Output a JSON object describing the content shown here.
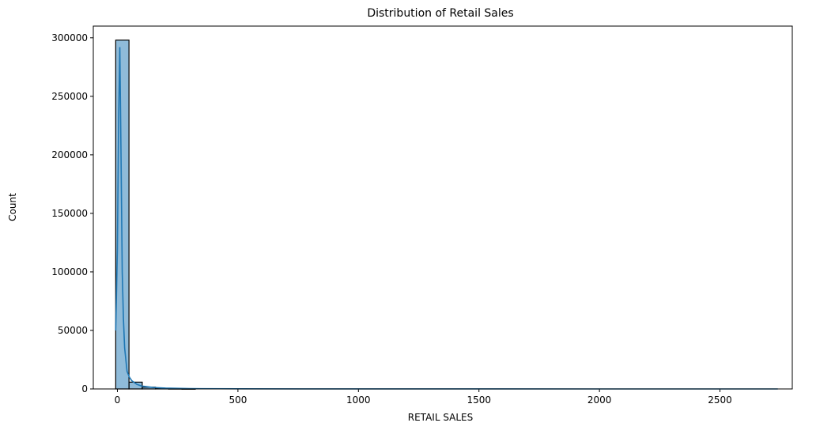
{
  "chart_data": {
    "type": "histogram",
    "title": "Distribution of Retail Sales",
    "xlabel": "RETAIL SALES",
    "ylabel": "Count",
    "xlim": [
      -100,
      2800
    ],
    "ylim": [
      0,
      310000
    ],
    "x_ticks": [
      0,
      500,
      1000,
      1500,
      2000,
      2500
    ],
    "y_ticks": [
      0,
      50000,
      100000,
      150000,
      200000,
      250000,
      300000
    ],
    "grid": false,
    "bar_color": "#1f77b4",
    "line_color": "#1f77b4",
    "bins": [
      {
        "start": -7,
        "end": 48,
        "count": 298000
      },
      {
        "start": 48,
        "end": 103,
        "count": 5800
      },
      {
        "start": 103,
        "end": 158,
        "count": 1500
      },
      {
        "start": 158,
        "end": 213,
        "count": 500
      },
      {
        "start": 213,
        "end": 268,
        "count": 200
      },
      {
        "start": 268,
        "end": 323,
        "count": 100
      }
    ],
    "kde": {
      "x": [
        -7,
        0,
        5,
        10,
        15,
        20,
        25,
        30,
        40,
        50,
        60,
        80,
        100,
        150,
        200,
        300,
        500,
        1000,
        1500,
        2000,
        2500,
        2740
      ],
      "y": [
        50000,
        120000,
        230000,
        292000,
        200000,
        100000,
        60000,
        35000,
        15000,
        10000,
        7000,
        4000,
        2500,
        1200,
        700,
        300,
        100,
        30,
        15,
        10,
        5,
        0
      ]
    }
  }
}
